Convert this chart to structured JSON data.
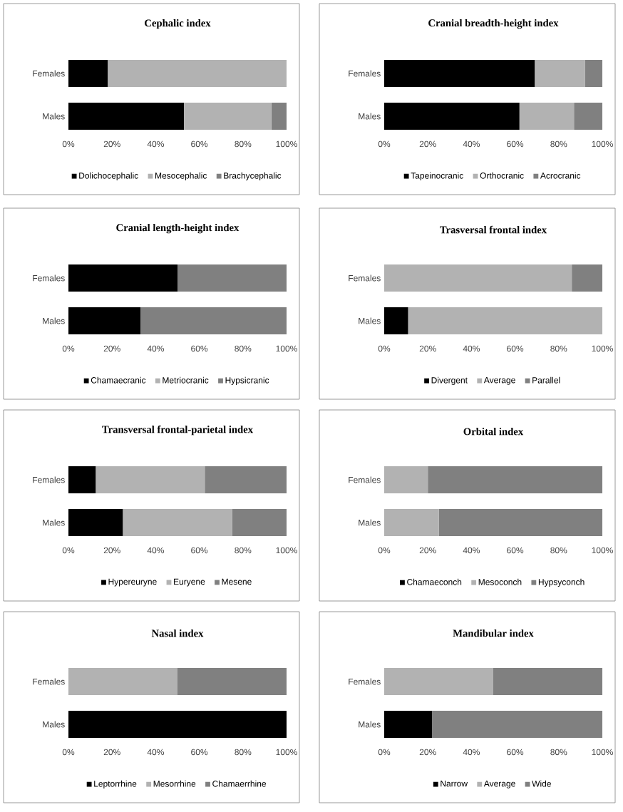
{
  "chart_data": [
    {
      "type": "bar",
      "orientation": "horizontal",
      "stacked": true,
      "title": "Cephalic index",
      "categories": [
        "Females",
        "Males"
      ],
      "series": [
        {
          "name": "Dolichocephalic",
          "color": "#000000",
          "values": [
            18,
            53
          ]
        },
        {
          "name": "Mesocephalic",
          "color": "#b2b2b2",
          "values": [
            82,
            40
          ]
        },
        {
          "name": "Brachycephalic",
          "color": "#808080",
          "values": [
            0,
            7
          ]
        }
      ],
      "xlim": [
        0,
        100
      ],
      "xticks": [
        {
          "value": 0,
          "label": "0%"
        },
        {
          "value": 20,
          "label": "20%"
        },
        {
          "value": 40,
          "label": "40%"
        },
        {
          "value": 60,
          "label": "60%"
        },
        {
          "value": 80,
          "label": "80%"
        },
        {
          "value": 100,
          "label": "100%"
        }
      ],
      "legend": "bottom"
    },
    {
      "type": "bar",
      "orientation": "horizontal",
      "stacked": true,
      "title": "Cranial breadth-height index",
      "categories": [
        "Females",
        "Males"
      ],
      "series": [
        {
          "name": "Tapeinocranic",
          "color": "#000000",
          "values": [
            69,
            62
          ]
        },
        {
          "name": "Orthocranic",
          "color": "#b2b2b2",
          "values": [
            23,
            25
          ]
        },
        {
          "name": "Acrocranic",
          "color": "#808080",
          "values": [
            8,
            13
          ]
        }
      ],
      "xlim": [
        0,
        100
      ],
      "xticks": [
        {
          "value": 0,
          "label": "0%"
        },
        {
          "value": 20,
          "label": "20%"
        },
        {
          "value": 40,
          "label": "40%"
        },
        {
          "value": 60,
          "label": "60%"
        },
        {
          "value": 80,
          "label": "80%"
        },
        {
          "value": 100,
          "label": "100%"
        }
      ],
      "legend": "bottom"
    },
    {
      "type": "bar",
      "orientation": "horizontal",
      "stacked": true,
      "title": "Cranial length-height index",
      "categories": [
        "Females",
        "Males"
      ],
      "series": [
        {
          "name": "Chamaecranic",
          "color": "#000000",
          "values": [
            50,
            33
          ]
        },
        {
          "name": "Metriocranic",
          "color": "#b2b2b2",
          "values": [
            0,
            0
          ]
        },
        {
          "name": "Hypsicranic",
          "color": "#808080",
          "values": [
            50,
            67
          ]
        }
      ],
      "xlim": [
        0,
        100
      ],
      "xticks": [
        {
          "value": 0,
          "label": "0%"
        },
        {
          "value": 20,
          "label": "20%"
        },
        {
          "value": 40,
          "label": "40%"
        },
        {
          "value": 60,
          "label": "60%"
        },
        {
          "value": 80,
          "label": "80%"
        },
        {
          "value": 100,
          "label": "100%"
        }
      ],
      "legend": "bottom"
    },
    {
      "type": "bar",
      "orientation": "horizontal",
      "stacked": true,
      "title": "Trasversal frontal index",
      "categories": [
        "Females",
        "Males"
      ],
      "series": [
        {
          "name": "Divergent",
          "color": "#000000",
          "values": [
            0,
            11
          ]
        },
        {
          "name": "Average",
          "color": "#b2b2b2",
          "values": [
            86,
            89
          ]
        },
        {
          "name": "Parallel",
          "color": "#808080",
          "values": [
            14,
            0
          ]
        }
      ],
      "xlim": [
        0,
        100
      ],
      "xticks": [
        {
          "value": 0,
          "label": "0%"
        },
        {
          "value": 20,
          "label": "20%"
        },
        {
          "value": 40,
          "label": "40%"
        },
        {
          "value": 60,
          "label": "60%"
        },
        {
          "value": 80,
          "label": "80%"
        },
        {
          "value": 100,
          "label": "100%"
        }
      ],
      "legend": "bottom"
    },
    {
      "type": "bar",
      "orientation": "horizontal",
      "stacked": true,
      "title": "Transversal frontal-parietal index",
      "categories": [
        "Females",
        "Males"
      ],
      "series": [
        {
          "name": "Hypereuryne",
          "color": "#000000",
          "values": [
            12.5,
            25
          ]
        },
        {
          "name": "Euryene",
          "color": "#b2b2b2",
          "values": [
            50,
            50
          ]
        },
        {
          "name": "Mesene",
          "color": "#808080",
          "values": [
            37.5,
            25
          ]
        }
      ],
      "xlim": [
        0,
        100
      ],
      "xticks": [
        {
          "value": 0,
          "label": "0%"
        },
        {
          "value": 20,
          "label": "20%"
        },
        {
          "value": 40,
          "label": "40%"
        },
        {
          "value": 60,
          "label": "60%"
        },
        {
          "value": 80,
          "label": "80%"
        },
        {
          "value": 100,
          "label": "100%"
        }
      ],
      "legend": "bottom"
    },
    {
      "type": "bar",
      "orientation": "horizontal",
      "stacked": true,
      "title": "Orbital index",
      "categories": [
        "Females",
        "Males"
      ],
      "series": [
        {
          "name": "Chamaeconch",
          "color": "#000000",
          "values": [
            0,
            0
          ]
        },
        {
          "name": "Mesoconch",
          "color": "#b2b2b2",
          "values": [
            20,
            25
          ]
        },
        {
          "name": "Hypsyconch",
          "color": "#808080",
          "values": [
            80,
            75
          ]
        }
      ],
      "xlim": [
        0,
        100
      ],
      "xticks": [
        {
          "value": 0,
          "label": "0%"
        },
        {
          "value": 20,
          "label": "20%"
        },
        {
          "value": 40,
          "label": "40%"
        },
        {
          "value": 60,
          "label": "60%"
        },
        {
          "value": 80,
          "label": "80%"
        },
        {
          "value": 100,
          "label": "100%"
        }
      ],
      "legend": "bottom"
    },
    {
      "type": "bar",
      "orientation": "horizontal",
      "stacked": true,
      "title": "Nasal index",
      "categories": [
        "Females",
        "Males"
      ],
      "series": [
        {
          "name": "Leptorrhine",
          "color": "#000000",
          "values": [
            0,
            100
          ]
        },
        {
          "name": "Mesorrhine",
          "color": "#b2b2b2",
          "values": [
            50,
            0
          ]
        },
        {
          "name": "Chamaerrhine",
          "color": "#808080",
          "values": [
            50,
            0
          ]
        }
      ],
      "xlim": [
        0,
        100
      ],
      "xticks": [
        {
          "value": 0,
          "label": "0%"
        },
        {
          "value": 20,
          "label": "20%"
        },
        {
          "value": 40,
          "label": "40%"
        },
        {
          "value": 60,
          "label": "60%"
        },
        {
          "value": 80,
          "label": "80%"
        },
        {
          "value": 100,
          "label": "100%"
        }
      ],
      "legend": "bottom"
    },
    {
      "type": "bar",
      "orientation": "horizontal",
      "stacked": true,
      "title": "Mandibular index",
      "categories": [
        "Females",
        "Males"
      ],
      "series": [
        {
          "name": "Narrow",
          "color": "#000000",
          "values": [
            0,
            22
          ]
        },
        {
          "name": "Average",
          "color": "#b2b2b2",
          "values": [
            50,
            0
          ]
        },
        {
          "name": "Wide",
          "color": "#808080",
          "values": [
            50,
            78
          ]
        }
      ],
      "xlim": [
        0,
        100
      ],
      "xticks": [
        {
          "value": 0,
          "label": "0%"
        },
        {
          "value": 20,
          "label": "20%"
        },
        {
          "value": 40,
          "label": "40%"
        },
        {
          "value": 60,
          "label": "60%"
        },
        {
          "value": 80,
          "label": "80%"
        },
        {
          "value": 100,
          "label": "100%"
        }
      ],
      "legend": "bottom"
    }
  ]
}
